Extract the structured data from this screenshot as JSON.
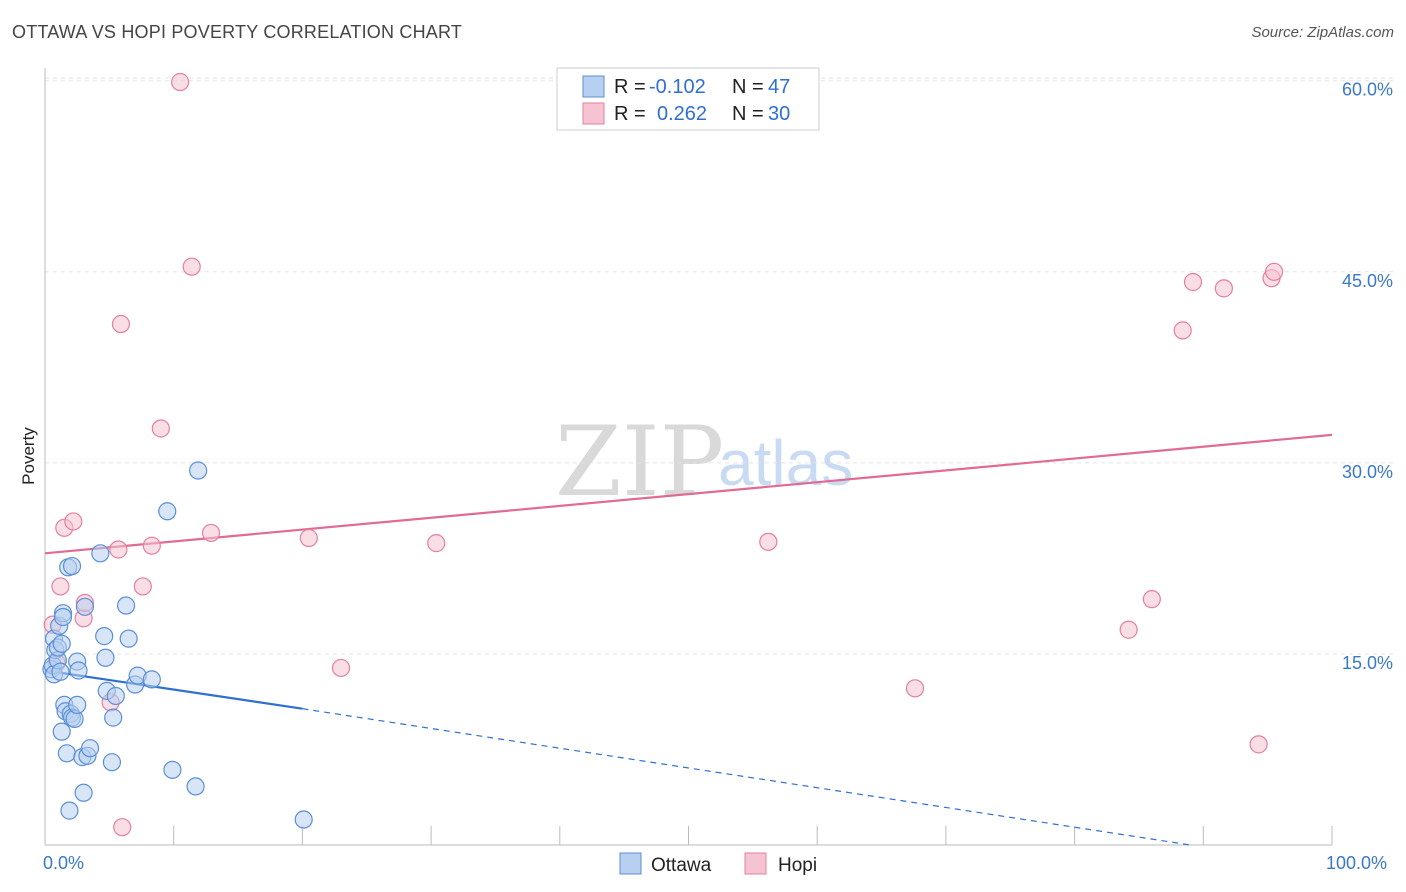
{
  "header": {
    "title": "OTTAWA VS HOPI POVERTY CORRELATION CHART",
    "source": "Source: ZipAtlas.com"
  },
  "watermark": {
    "zip": "ZIP",
    "atlas": "atlas"
  },
  "legend": {
    "rows": [
      {
        "r_label": "R =",
        "r_value": "-0.102",
        "n_label": "N =",
        "n_value": "47"
      },
      {
        "r_label": "R =",
        "r_value": "0.262",
        "n_label": "N =",
        "n_value": "30"
      }
    ]
  },
  "bottom_legend": {
    "ottawa": "Ottawa",
    "hopi": "Hopi"
  },
  "chart_data": {
    "type": "scatter",
    "title": "OTTAWA VS HOPI POVERTY CORRELATION CHART",
    "xlabel": "",
    "ylabel": "Poverty",
    "xlim": [
      0,
      100
    ],
    "ylim": [
      0,
      61
    ],
    "x_tick_labels": [
      "0.0%",
      "100.0%"
    ],
    "y_ticks": [
      15,
      30,
      45,
      60
    ],
    "y_tick_labels": [
      "15.0%",
      "30.0%",
      "45.0%",
      "60.0%"
    ],
    "colors": {
      "ottawa": "#5b8fd6",
      "ottawa_fill": "#b7cff0",
      "hopi": "#e57fa0",
      "hopi_fill": "#f6c3d2",
      "ottawa_line": "#2f6fd1",
      "hopi_line": "#e06b94"
    },
    "series": [
      {
        "name": "Ottawa",
        "points": [
          [
            0.5,
            13.8
          ],
          [
            0.6,
            14.1
          ],
          [
            0.7,
            13.4
          ],
          [
            0.7,
            16.2
          ],
          [
            0.8,
            15.3
          ],
          [
            1.0,
            14.5
          ],
          [
            1.0,
            15.5
          ],
          [
            1.1,
            17.2
          ],
          [
            1.2,
            13.6
          ],
          [
            1.3,
            15.8
          ],
          [
            1.4,
            18.2
          ],
          [
            1.4,
            17.9
          ],
          [
            1.5,
            11.0
          ],
          [
            1.6,
            10.5
          ],
          [
            1.7,
            7.2
          ],
          [
            1.8,
            21.8
          ],
          [
            1.9,
            2.7
          ],
          [
            2.0,
            10.3
          ],
          [
            2.1,
            10.0
          ],
          [
            2.1,
            21.9
          ],
          [
            2.3,
            9.9
          ],
          [
            2.5,
            14.4
          ],
          [
            2.5,
            11.0
          ],
          [
            2.6,
            13.7
          ],
          [
            2.9,
            6.9
          ],
          [
            3.0,
            4.1
          ],
          [
            3.1,
            18.7
          ],
          [
            3.3,
            7.0
          ],
          [
            3.5,
            7.6
          ],
          [
            4.3,
            22.9
          ],
          [
            4.6,
            16.4
          ],
          [
            4.7,
            14.7
          ],
          [
            4.8,
            12.1
          ],
          [
            5.2,
            6.5
          ],
          [
            5.3,
            10.0
          ],
          [
            5.5,
            11.7
          ],
          [
            6.3,
            18.8
          ],
          [
            6.5,
            16.2
          ],
          [
            7.0,
            12.6
          ],
          [
            7.2,
            13.3
          ],
          [
            8.3,
            13.0
          ],
          [
            9.5,
            26.2
          ],
          [
            9.9,
            5.9
          ],
          [
            11.7,
            4.6
          ],
          [
            11.9,
            29.4
          ],
          [
            20.1,
            2.0
          ],
          [
            1.3,
            8.9
          ]
        ]
      },
      {
        "name": "Hopi",
        "points": [
          [
            0.6,
            17.3
          ],
          [
            0.9,
            14.3
          ],
          [
            1.2,
            20.3
          ],
          [
            1.5,
            24.9
          ],
          [
            2.2,
            25.4
          ],
          [
            3.0,
            17.8
          ],
          [
            3.1,
            19.0
          ],
          [
            5.1,
            11.2
          ],
          [
            5.7,
            23.2
          ],
          [
            5.9,
            40.9
          ],
          [
            7.6,
            20.3
          ],
          [
            8.3,
            23.5
          ],
          [
            9.0,
            32.7
          ],
          [
            10.5,
            59.9
          ],
          [
            11.4,
            45.4
          ],
          [
            12.9,
            24.5
          ],
          [
            20.5,
            24.1
          ],
          [
            23.0,
            13.9
          ],
          [
            30.4,
            23.7
          ],
          [
            56.2,
            23.8
          ],
          [
            67.6,
            12.3
          ],
          [
            84.2,
            16.9
          ],
          [
            86.0,
            19.3
          ],
          [
            88.4,
            40.4
          ],
          [
            89.2,
            44.2
          ],
          [
            91.6,
            43.7
          ],
          [
            94.3,
            7.9
          ],
          [
            95.3,
            44.5
          ],
          [
            95.5,
            45.0
          ],
          [
            6.0,
            1.4
          ]
        ]
      }
    ],
    "trendlines": [
      {
        "name": "Ottawa",
        "x_start": 0,
        "y_start": 13.7,
        "x_solid_end": 20,
        "y_solid_end": 10.7,
        "x_dash_end": 89,
        "y_dash_end": 0.0
      },
      {
        "name": "Hopi",
        "x_start": 0,
        "y_start": 22.9,
        "x_end": 100,
        "y_end": 32.2
      }
    ]
  }
}
